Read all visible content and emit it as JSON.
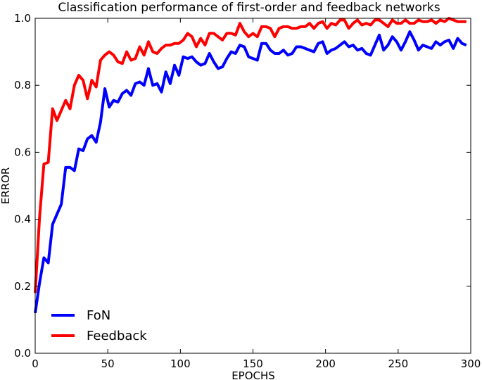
{
  "chart_data": {
    "type": "line",
    "title": "Classification performance of first-order and feedback networks",
    "xlabel": "EPOCHS",
    "ylabel": "ERROR",
    "xlim": [
      0,
      300
    ],
    "ylim": [
      0.0,
      1.0
    ],
    "x_ticks": [
      "0",
      "50",
      "100",
      "150",
      "200",
      "250",
      "300"
    ],
    "y_ticks": [
      "0.0",
      "0.2",
      "0.4",
      "0.6",
      "0.8",
      "1.0"
    ],
    "grid": false,
    "legend_position": "lower-left",
    "x": [
      0,
      3,
      6,
      9,
      12,
      15,
      18,
      21,
      24,
      27,
      30,
      33,
      36,
      39,
      42,
      45,
      48,
      51,
      54,
      57,
      60,
      63,
      66,
      69,
      72,
      75,
      78,
      81,
      84,
      87,
      90,
      93,
      96,
      99,
      102,
      105,
      108,
      111,
      114,
      117,
      120,
      123,
      126,
      129,
      132,
      135,
      138,
      141,
      144,
      147,
      150,
      153,
      156,
      159,
      162,
      165,
      168,
      171,
      174,
      177,
      180,
      183,
      186,
      189,
      192,
      195,
      198,
      201,
      204,
      207,
      210,
      213,
      216,
      219,
      222,
      225,
      228,
      231,
      234,
      237,
      240,
      243,
      246,
      249,
      252,
      255,
      258,
      261,
      264,
      267,
      270,
      273,
      276,
      279,
      282,
      285,
      288,
      291,
      294,
      297
    ],
    "series": [
      {
        "name": "FoN",
        "color": "#0000ff",
        "values": [
          0.12,
          0.21,
          0.285,
          0.27,
          0.385,
          0.415,
          0.445,
          0.555,
          0.555,
          0.545,
          0.61,
          0.605,
          0.64,
          0.65,
          0.63,
          0.69,
          0.79,
          0.735,
          0.755,
          0.75,
          0.775,
          0.785,
          0.77,
          0.805,
          0.81,
          0.8,
          0.85,
          0.8,
          0.805,
          0.78,
          0.84,
          0.805,
          0.86,
          0.83,
          0.885,
          0.88,
          0.885,
          0.87,
          0.86,
          0.865,
          0.895,
          0.87,
          0.85,
          0.855,
          0.88,
          0.9,
          0.895,
          0.92,
          0.915,
          0.885,
          0.88,
          0.875,
          0.925,
          0.925,
          0.905,
          0.895,
          0.895,
          0.905,
          0.89,
          0.895,
          0.915,
          0.915,
          0.91,
          0.905,
          0.9,
          0.925,
          0.93,
          0.895,
          0.905,
          0.91,
          0.92,
          0.93,
          0.915,
          0.92,
          0.905,
          0.91,
          0.895,
          0.89,
          0.92,
          0.95,
          0.905,
          0.92,
          0.945,
          0.93,
          0.905,
          0.93,
          0.96,
          0.935,
          0.905,
          0.92,
          0.915,
          0.91,
          0.93,
          0.92,
          0.93,
          0.935,
          0.91,
          0.94,
          0.925,
          0.92
        ]
      },
      {
        "name": "Feedback",
        "color": "#ff0000",
        "values": [
          0.18,
          0.405,
          0.565,
          0.57,
          0.73,
          0.695,
          0.725,
          0.755,
          0.73,
          0.8,
          0.83,
          0.815,
          0.76,
          0.815,
          0.795,
          0.875,
          0.89,
          0.9,
          0.89,
          0.87,
          0.865,
          0.9,
          0.875,
          0.88,
          0.915,
          0.89,
          0.93,
          0.9,
          0.895,
          0.91,
          0.92,
          0.92,
          0.925,
          0.925,
          0.935,
          0.955,
          0.945,
          0.915,
          0.94,
          0.92,
          0.955,
          0.955,
          0.945,
          0.935,
          0.955,
          0.955,
          0.95,
          0.985,
          0.96,
          0.945,
          0.955,
          0.945,
          0.975,
          0.975,
          0.97,
          0.945,
          0.97,
          0.975,
          0.975,
          0.97,
          0.97,
          0.975,
          0.975,
          0.985,
          0.97,
          0.985,
          0.99,
          0.97,
          0.985,
          0.98,
          0.995,
          0.995,
          0.97,
          0.985,
          0.995,
          0.98,
          0.985,
          0.98,
          0.995,
          0.995,
          0.985,
          0.975,
          0.995,
          0.985,
          0.985,
          0.995,
          0.985,
          0.985,
          0.995,
          0.99,
          0.99,
          0.995,
          0.985,
          0.995,
          0.99,
          1.0,
          0.995,
          0.99,
          0.99,
          0.99
        ]
      }
    ]
  }
}
